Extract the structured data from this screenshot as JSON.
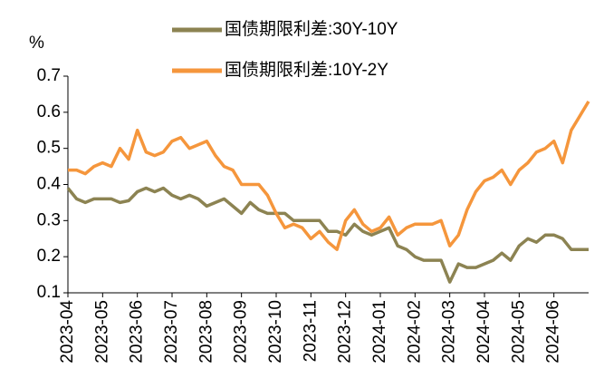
{
  "chart_data": {
    "type": "line",
    "unit_label": "%",
    "legend": "top",
    "categories": [
      "2023-04",
      null,
      null,
      null,
      "2023-05",
      null,
      null,
      null,
      "2023-06",
      null,
      null,
      null,
      "2023-07",
      null,
      null,
      null,
      "2023-08",
      null,
      null,
      null,
      "2023-09",
      null,
      null,
      null,
      "2023-10",
      null,
      null,
      null,
      "2023-11",
      null,
      null,
      null,
      "2023-12",
      null,
      null,
      null,
      "2024-01",
      null,
      null,
      null,
      "2024-02",
      null,
      null,
      null,
      "2024-03",
      null,
      null,
      null,
      "2024-04",
      null,
      null,
      null,
      "2024-05",
      null,
      null,
      null,
      "2024-06",
      null,
      null,
      null,
      null
    ],
    "series": [
      {
        "name": "国债期限利差:30Y-10Y",
        "color": "#8c8352",
        "values": [
          0.39,
          0.36,
          0.35,
          0.36,
          0.36,
          0.36,
          0.35,
          0.355,
          0.38,
          0.39,
          0.38,
          0.39,
          0.37,
          0.36,
          0.37,
          0.36,
          0.34,
          0.35,
          0.36,
          0.34,
          0.32,
          0.35,
          0.33,
          0.32,
          0.32,
          0.32,
          0.3,
          0.3,
          0.3,
          0.3,
          0.27,
          0.27,
          0.26,
          0.29,
          0.27,
          0.26,
          0.27,
          0.28,
          0.23,
          0.22,
          0.2,
          0.19,
          0.19,
          0.19,
          0.13,
          0.18,
          0.17,
          0.17,
          0.18,
          0.19,
          0.21,
          0.19,
          0.23,
          0.25,
          0.24,
          0.26,
          0.26,
          0.25,
          0.22,
          0.22,
          0.22
        ]
      },
      {
        "name": "国债期限利差:10Y-2Y",
        "color": "#f5963c",
        "values": [
          0.44,
          0.44,
          0.43,
          0.45,
          0.46,
          0.45,
          0.5,
          0.47,
          0.55,
          0.49,
          0.48,
          0.49,
          0.52,
          0.53,
          0.5,
          0.51,
          0.52,
          0.48,
          0.45,
          0.44,
          0.4,
          0.4,
          0.4,
          0.37,
          0.32,
          0.28,
          0.29,
          0.28,
          0.25,
          0.27,
          0.24,
          0.22,
          0.3,
          0.33,
          0.29,
          0.27,
          0.28,
          0.31,
          0.26,
          0.28,
          0.29,
          0.29,
          0.29,
          0.3,
          0.23,
          0.26,
          0.33,
          0.38,
          0.41,
          0.42,
          0.44,
          0.4,
          0.44,
          0.46,
          0.49,
          0.5,
          0.52,
          0.46,
          0.55,
          0.59,
          0.63
        ]
      }
    ],
    "ylim": [
      0.1,
      0.7
    ],
    "yticks": [
      0.1,
      0.2,
      0.3,
      0.4,
      0.5,
      0.6,
      0.7
    ]
  }
}
